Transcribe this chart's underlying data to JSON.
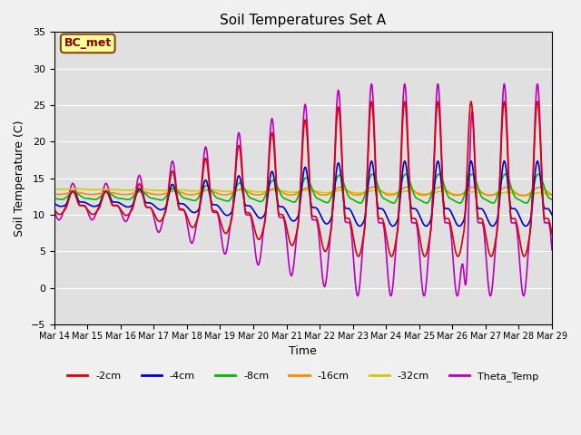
{
  "title": "Soil Temperatures Set A",
  "xlabel": "Time",
  "ylabel": "Soil Temperature (C)",
  "ylim": [
    -5,
    35
  ],
  "background_color": "#e8e8e8",
  "annotation_text": "BC_met",
  "series": {
    "-2cm": {
      "color": "#dd0000",
      "lw": 1.2
    },
    "-4cm": {
      "color": "#0000cc",
      "lw": 1.2
    },
    "-8cm": {
      "color": "#00bb00",
      "lw": 1.2
    },
    "-16cm": {
      "color": "#ff8800",
      "lw": 1.2
    },
    "-32cm": {
      "color": "#cccc00",
      "lw": 1.2
    },
    "Theta_Temp": {
      "color": "#bb00bb",
      "lw": 1.2
    }
  },
  "xtick_labels": [
    "Mar 14",
    "Mar 15",
    "Mar 16",
    "Mar 17",
    "Mar 18",
    "Mar 19",
    "Mar 20",
    "Mar 21",
    "Mar 22",
    "Mar 23",
    "Mar 24",
    "Mar 25",
    "Mar 26",
    "Mar 27",
    "Mar 28",
    "Mar 29"
  ],
  "ytick_labels": [
    -5,
    0,
    5,
    10,
    15,
    20,
    25,
    30,
    35
  ]
}
